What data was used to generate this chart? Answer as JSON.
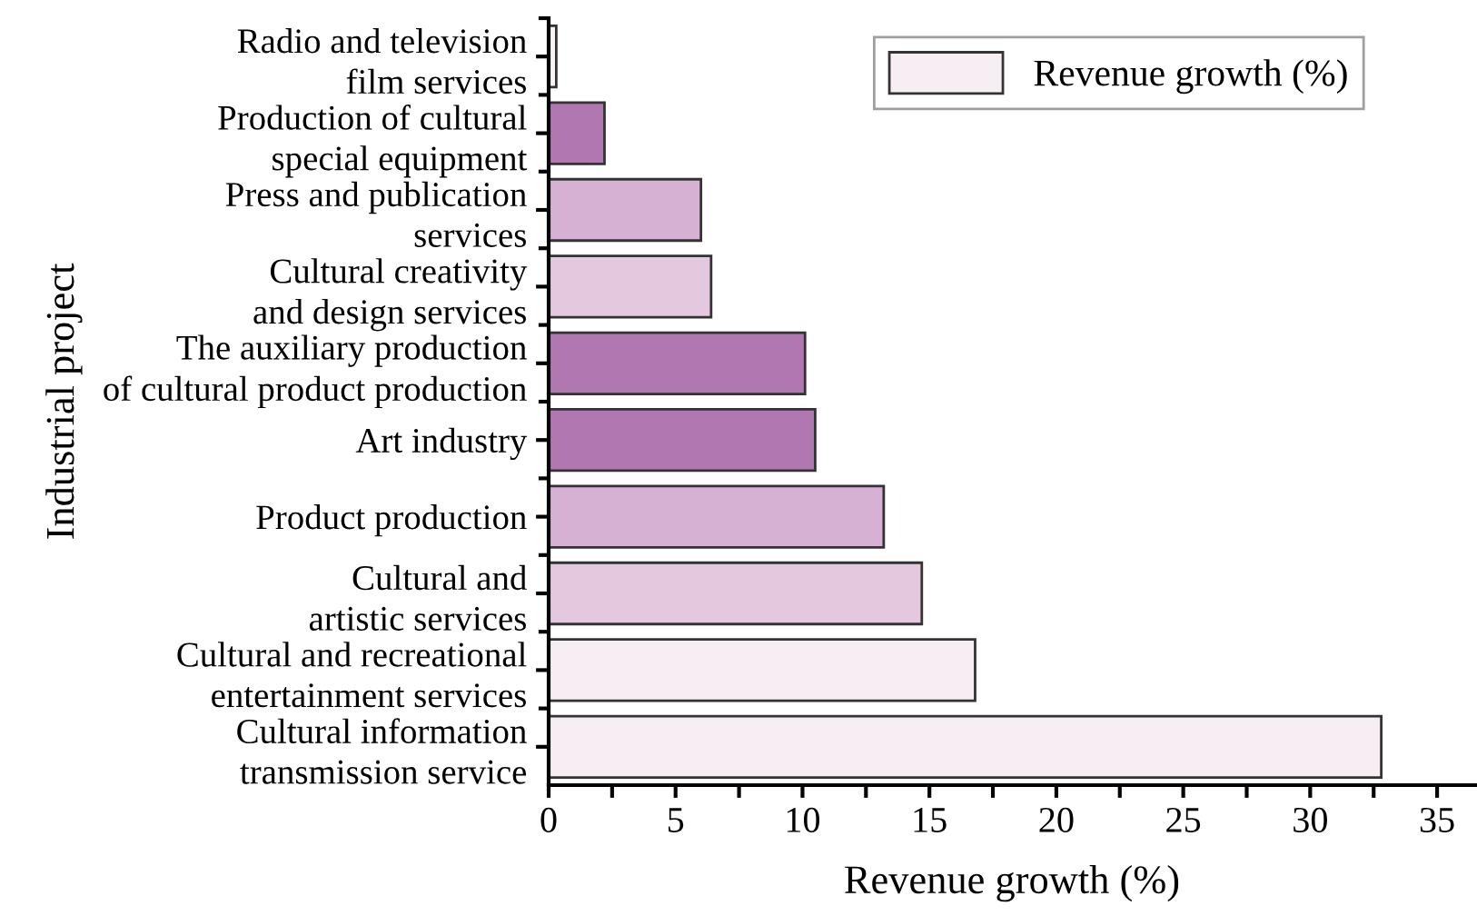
{
  "chart_data": {
    "type": "bar",
    "orientation": "horizontal",
    "categories": [
      "Radio and television\nfilm services",
      "Production of cultural\nspecial equipment",
      "Press and publication\nservices",
      "Cultural creativity\nand design services",
      "The auxiliary production\nof cultural product production",
      "Art industry",
      "Product production",
      "Cultural and\nartistic services",
      "Cultural and recreational\nentertainment services",
      "Cultural information\ntransmission service"
    ],
    "series": [
      {
        "name": "Revenue growth (%)",
        "color": "#f6eef2",
        "values": [
          0.3,
          2.2,
          6.0,
          6.4,
          10.1,
          10.5,
          13.2,
          14.7,
          16.8,
          32.8
        ],
        "colors": [
          "#f8f3f5",
          "#b077b0",
          "#d6b1d4",
          "#e3c8de",
          "#b077b0",
          "#b077b0",
          "#d6b1d4",
          "#e3c8de",
          "#f6eef2",
          "#f6eef2"
        ]
      }
    ],
    "xlabel": "Revenue growth (%)",
    "ylabel": "Industrial project",
    "xlim": [
      0,
      36.5
    ],
    "xticks": [
      0,
      {
        "value": 2.5,
        "label": null
      },
      5,
      {
        "value": 7.5,
        "label": null
      },
      10,
      {
        "value": 12.5,
        "label": null
      },
      15,
      {
        "value": 17.5,
        "label": null
      },
      20,
      {
        "value": 22.5,
        "label": null
      },
      25,
      {
        "value": 27.5,
        "label": null
      },
      30,
      {
        "value": 32.5,
        "label": null
      },
      35
    ],
    "grid": false,
    "legend": "top right"
  }
}
